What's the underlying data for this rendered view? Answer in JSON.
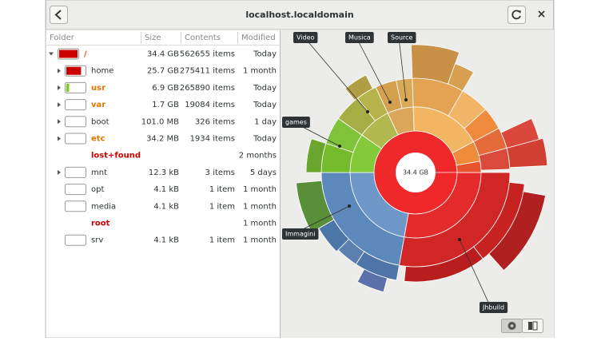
{
  "header": {
    "title": "localhost.localdomain"
  },
  "table": {
    "columns": [
      "Folder",
      "Size",
      "Contents",
      "Modified"
    ],
    "rows": [
      {
        "name": "/",
        "size": "34.4 GB",
        "contents": "562655 items",
        "modified": "Today"
      },
      {
        "name": "home",
        "size": "25.7 GB",
        "contents": "275411 items",
        "modified": "1 month"
      },
      {
        "name": "usr",
        "size": "6.9 GB",
        "contents": "265890 items",
        "modified": "Today"
      },
      {
        "name": "var",
        "size": "1.7 GB",
        "contents": "19084 items",
        "modified": "Today"
      },
      {
        "name": "boot",
        "size": "101.0 MB",
        "contents": "326 items",
        "modified": "1 day"
      },
      {
        "name": "etc",
        "size": "34.2 MB",
        "contents": "1934 items",
        "modified": "Today"
      },
      {
        "name": "lost+found",
        "modified": "2 months"
      },
      {
        "name": "mnt",
        "size": "12.3 kB",
        "contents": "3 items",
        "modified": "5 days"
      },
      {
        "name": "opt",
        "size": "4.1 kB",
        "contents": "1 item",
        "modified": "1 month"
      },
      {
        "name": "media",
        "size": "4.1 kB",
        "contents": "1 item",
        "modified": "1 month"
      },
      {
        "name": "root",
        "modified": "1 month"
      },
      {
        "name": "srv",
        "size": "4.1 kB",
        "contents": "1 item",
        "modified": "1 month"
      }
    ]
  },
  "chart": {
    "center_label": "34.4 GB",
    "labels": [
      "Video",
      "Musica",
      "Source",
      "games",
      "Immagini",
      "Jhbuild"
    ]
  }
}
